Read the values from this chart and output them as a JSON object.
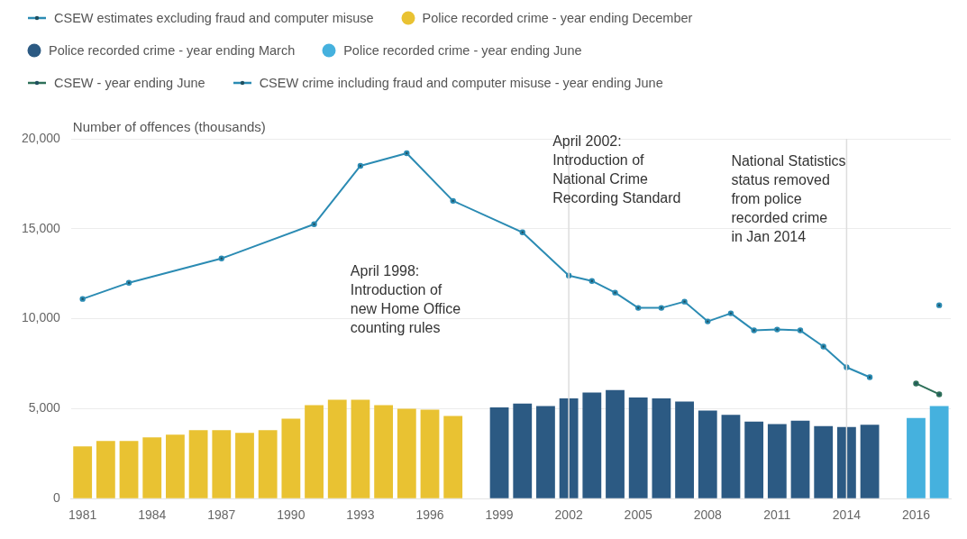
{
  "chart_data": {
    "type": "bar",
    "ylabel": "Number of offences (thousands)",
    "categories": [
      "1981",
      null,
      null,
      "1984",
      null,
      null,
      "1987",
      null,
      null,
      "1990",
      null,
      null,
      "1993",
      null,
      null,
      "1996",
      null,
      null,
      "1999",
      null,
      null,
      "2002",
      null,
      null,
      "2005",
      null,
      null,
      "2008",
      null,
      null,
      "2011",
      null,
      null,
      "2014",
      null,
      null,
      "2016",
      null
    ],
    "series": [
      {
        "name": "CSEW estimates excluding fraud and computer misuse",
        "type": "line",
        "color": "#2b8bb3",
        "values": [
          11100,
          null,
          12000,
          null,
          null,
          null,
          13350,
          null,
          null,
          null,
          15250,
          null,
          18500,
          null,
          19200,
          null,
          16550,
          null,
          null,
          14800,
          null,
          12400,
          12100,
          11450,
          10600,
          10600,
          10950,
          9850,
          10300,
          9350,
          9400,
          9350,
          8450,
          7300,
          6750,
          null,
          null,
          null
        ]
      },
      {
        "name": "Police recorded crime - year ending December",
        "color": "#e9c232",
        "values": [
          2900,
          3200,
          3200,
          3400,
          3550,
          3800,
          3800,
          3650,
          3800,
          4450,
          5200,
          5500,
          5500,
          5200,
          5000,
          4950,
          4600,
          null,
          null,
          null,
          null,
          null,
          null,
          null,
          null,
          null,
          null,
          null,
          null,
          null,
          null,
          null,
          null,
          null,
          null,
          null,
          null,
          null
        ]
      },
      {
        "name": "Police recorded crime - year ending March",
        "color": "#2c5a83",
        "values": [
          null,
          null,
          null,
          null,
          null,
          null,
          null,
          null,
          null,
          null,
          null,
          null,
          null,
          null,
          null,
          null,
          null,
          null,
          5070,
          5280,
          5150,
          5570,
          5900,
          6040,
          5620,
          5570,
          5400,
          4900,
          4660,
          4280,
          4140,
          4330,
          4030,
          3980,
          4110,
          null,
          null,
          null
        ]
      },
      {
        "name": "Police recorded crime - year ending June",
        "color": "#45b1de",
        "values": [
          null,
          null,
          null,
          null,
          null,
          null,
          null,
          null,
          null,
          null,
          null,
          null,
          null,
          null,
          null,
          null,
          null,
          null,
          null,
          null,
          null,
          null,
          null,
          null,
          null,
          null,
          null,
          null,
          null,
          null,
          null,
          null,
          null,
          null,
          null,
          null,
          4480,
          5150
        ]
      },
      {
        "name": "CSEW - year ending June",
        "type": "line",
        "color": "#2e7059",
        "values": [
          null,
          null,
          null,
          null,
          null,
          null,
          null,
          null,
          null,
          null,
          null,
          null,
          null,
          null,
          null,
          null,
          null,
          null,
          null,
          null,
          null,
          null,
          null,
          null,
          null,
          null,
          null,
          null,
          null,
          null,
          null,
          null,
          null,
          null,
          null,
          null,
          6400,
          5800
        ]
      },
      {
        "name": "CSEW crime including fraud and computer misuse - year ending June",
        "type": "line",
        "color": "#2b8bb3",
        "values": [
          null,
          null,
          null,
          null,
          null,
          null,
          null,
          null,
          null,
          null,
          null,
          null,
          null,
          null,
          null,
          null,
          null,
          null,
          null,
          null,
          null,
          null,
          null,
          null,
          null,
          null,
          null,
          null,
          null,
          null,
          null,
          null,
          null,
          null,
          null,
          null,
          null,
          10750
        ]
      }
    ],
    "ylim": [
      0,
      20000
    ],
    "yticks": [
      0,
      {
        "value": 5000,
        "label": "5,000"
      },
      {
        "value": 10000,
        "label": "10,000"
      },
      {
        "value": 15000,
        "label": "15,000"
      },
      {
        "value": 20000,
        "label": "20,000"
      }
    ],
    "grid": "y",
    "legend": "top",
    "marker": "circle",
    "line_style": "solid",
    "ref_lines": [
      {
        "axis": "x",
        "value": "2002",
        "label": "April 2002:\nIntroduction of\nNational Crime\nRecording Standard",
        "color": "#dddddd"
      },
      {
        "axis": "x",
        "value": "2014",
        "label": "National Statistics\nstatus removed\nfrom police\nrecorded crime\nin Jan 2014",
        "color": "#dddddd"
      }
    ],
    "annotations": [
      "April 1998:\nIntroduction of\nnew Home Office\ncounting rules"
    ]
  }
}
